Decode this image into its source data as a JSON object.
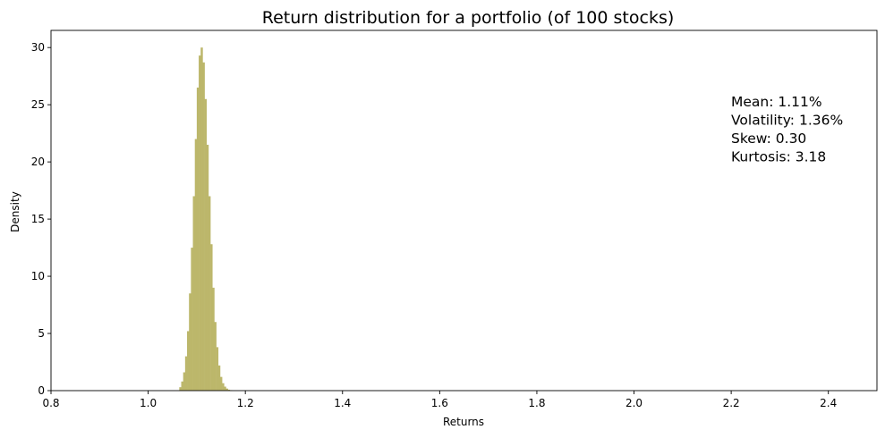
{
  "chart_data": {
    "type": "histogram",
    "title": "Return distribution for a portfolio (of 100 stocks)",
    "xlabel": "Returns",
    "ylabel": "Density",
    "xlim": [
      0.8,
      2.5
    ],
    "ylim": [
      0,
      31.5
    ],
    "x_ticks": [
      "0.8",
      "1.0",
      "1.2",
      "1.4",
      "1.6",
      "1.8",
      "2.0",
      "2.2",
      "2.4"
    ],
    "y_ticks": [
      "0",
      "5",
      "10",
      "15",
      "20",
      "25",
      "30"
    ],
    "bar_color": "#bcb76b",
    "bins": [
      {
        "x": 1.066,
        "y": 0.3
      },
      {
        "x": 1.07,
        "y": 0.8
      },
      {
        "x": 1.074,
        "y": 1.6
      },
      {
        "x": 1.078,
        "y": 3.0
      },
      {
        "x": 1.082,
        "y": 5.2
      },
      {
        "x": 1.086,
        "y": 8.5
      },
      {
        "x": 1.09,
        "y": 12.5
      },
      {
        "x": 1.094,
        "y": 17.0
      },
      {
        "x": 1.098,
        "y": 22.0
      },
      {
        "x": 1.102,
        "y": 26.5
      },
      {
        "x": 1.106,
        "y": 29.3
      },
      {
        "x": 1.11,
        "y": 30.0
      },
      {
        "x": 1.114,
        "y": 28.7
      },
      {
        "x": 1.118,
        "y": 25.5
      },
      {
        "x": 1.122,
        "y": 21.5
      },
      {
        "x": 1.126,
        "y": 17.0
      },
      {
        "x": 1.13,
        "y": 12.8
      },
      {
        "x": 1.134,
        "y": 9.0
      },
      {
        "x": 1.138,
        "y": 6.0
      },
      {
        "x": 1.142,
        "y": 3.8
      },
      {
        "x": 1.146,
        "y": 2.2
      },
      {
        "x": 1.15,
        "y": 1.2
      },
      {
        "x": 1.154,
        "y": 0.65
      },
      {
        "x": 1.158,
        "y": 0.35
      },
      {
        "x": 1.162,
        "y": 0.18
      },
      {
        "x": 1.166,
        "y": 0.08
      },
      {
        "x": 1.17,
        "y": 0.04
      }
    ],
    "bin_width": 0.004,
    "annotation": [
      "Mean: 1.11%",
      "Volatility: 1.36%",
      "Skew: 0.30",
      "Kurtosis: 3.18"
    ]
  }
}
